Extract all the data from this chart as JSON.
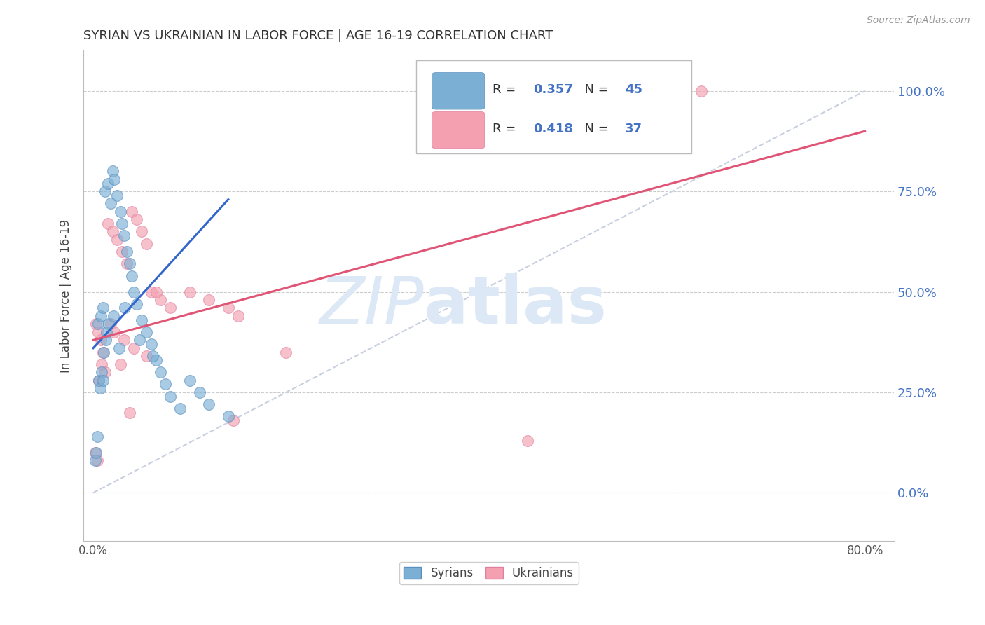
{
  "title": "SYRIAN VS UKRAINIAN IN LABOR FORCE | AGE 16-19 CORRELATION CHART",
  "source": "Source: ZipAtlas.com",
  "ylabel_label": "In Labor Force | Age 16-19",
  "xlim": [
    -1,
    83
  ],
  "ylim": [
    -12,
    110
  ],
  "ytick_vals": [
    0,
    25,
    50,
    75,
    100
  ],
  "xtick_vals": [
    0,
    80
  ],
  "xtick_labels": [
    "0.0%",
    "80.0%"
  ],
  "ytick_labels_right": [
    "0.0%",
    "25.0%",
    "50.0%",
    "75.0%",
    "100.0%"
  ],
  "blue_color": "#7bafd4",
  "pink_color": "#f4a0b0",
  "blue_edge_color": "#5a90c0",
  "pink_edge_color": "#e080a0",
  "blue_line_color": "#3366cc",
  "pink_line_color": "#e05575",
  "diagonal_color": "#c8d0e0",
  "legend_blue_R": "0.357",
  "legend_blue_N": "45",
  "legend_pink_R": "0.418",
  "legend_pink_N": "37",
  "watermark_zip_color": "#dce8f5",
  "watermark_atlas_color": "#dce8f5",
  "blue_x": [
    0.5,
    0.8,
    1.0,
    1.2,
    1.5,
    1.8,
    2.0,
    2.2,
    2.5,
    2.8,
    3.0,
    3.2,
    3.5,
    3.8,
    4.0,
    4.2,
    4.5,
    5.0,
    5.5,
    6.0,
    6.5,
    7.0,
    7.5,
    8.0,
    9.0,
    10.0,
    11.0,
    12.0,
    14.0,
    0.2,
    0.3,
    0.4,
    0.6,
    0.7,
    0.9,
    1.1,
    1.3,
    1.4,
    1.6,
    2.1,
    2.7,
    3.3,
    4.8,
    6.2,
    1.0
  ],
  "blue_y": [
    42,
    44,
    46,
    75,
    77,
    72,
    80,
    78,
    74,
    70,
    67,
    64,
    60,
    57,
    54,
    50,
    47,
    43,
    40,
    37,
    33,
    30,
    27,
    24,
    21,
    28,
    25,
    22,
    19,
    8,
    10,
    14,
    28,
    26,
    30,
    35,
    38,
    40,
    42,
    44,
    36,
    46,
    38,
    34,
    28
  ],
  "pink_x": [
    0.3,
    0.5,
    0.8,
    1.0,
    1.5,
    2.0,
    2.5,
    3.0,
    3.5,
    4.0,
    4.5,
    5.0,
    5.5,
    6.0,
    7.0,
    8.0,
    10.0,
    12.0,
    14.0,
    15.0,
    0.2,
    0.4,
    0.6,
    0.9,
    1.2,
    1.8,
    2.2,
    3.2,
    4.2,
    5.5,
    6.5,
    14.5,
    20.0,
    45.0,
    63.0,
    2.8,
    3.8
  ],
  "pink_y": [
    42,
    40,
    38,
    35,
    67,
    65,
    63,
    60,
    57,
    70,
    68,
    65,
    62,
    50,
    48,
    46,
    50,
    48,
    46,
    44,
    10,
    8,
    28,
    32,
    30,
    42,
    40,
    38,
    36,
    34,
    50,
    18,
    35,
    13,
    100,
    32,
    20
  ],
  "blue_reg_x0": 0.0,
  "blue_reg_y0": 36.0,
  "blue_reg_x1": 14.0,
  "blue_reg_y1": 73.0,
  "pink_reg_x0": 0.0,
  "pink_reg_y0": 38.0,
  "pink_reg_x1": 80.0,
  "pink_reg_y1": 90.0,
  "diag_x0": 0.0,
  "diag_y0": 0.0,
  "diag_x1": 80.0,
  "diag_y1": 100.0
}
